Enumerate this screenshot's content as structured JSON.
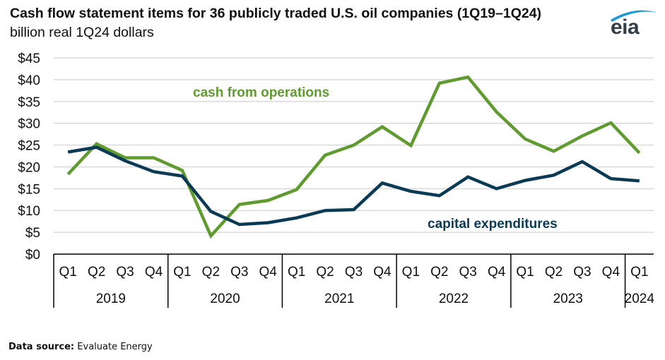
{
  "header": {
    "title": "Cash flow statement items for 36 publicly traded U.S. oil companies (1Q19–1Q24)",
    "subtitle": "billion real 1Q24 dollars",
    "logo_text": "eia",
    "logo_icon": "eia-swoosh-icon"
  },
  "footer": {
    "source_label": "Data source:",
    "source_value": "Evaluate Energy"
  },
  "colors": {
    "cash_from_operations": "#5f9b2f",
    "capital_expenditures": "#0b3a55",
    "gridline": "#d9d9d9",
    "axis": "#000000",
    "logo_swoosh": "#1a9ad6"
  },
  "chart_data": {
    "type": "line",
    "title": "Cash flow statement items for 36 publicly traded U.S. oil companies (1Q19–1Q24)",
    "subtitle": "billion real 1Q24 dollars",
    "xlabel": "",
    "ylabel": "",
    "ylim": [
      0,
      45
    ],
    "yticks": [
      0,
      5,
      10,
      15,
      20,
      25,
      30,
      35,
      40,
      45
    ],
    "ytick_labels": [
      "$0",
      "$5",
      "$10",
      "$15",
      "$20",
      "$25",
      "$30",
      "$35",
      "$40",
      "$45"
    ],
    "grid": true,
    "legend": "inline labels",
    "categories": [
      "Q1",
      "Q2",
      "Q3",
      "Q4",
      "Q1",
      "Q2",
      "Q3",
      "Q4",
      "Q1",
      "Q2",
      "Q3",
      "Q4",
      "Q1",
      "Q2",
      "Q3",
      "Q4",
      "Q1",
      "Q2",
      "Q3",
      "Q4",
      "Q1"
    ],
    "year_groups": [
      {
        "label": "2019",
        "count": 4
      },
      {
        "label": "2020",
        "count": 4
      },
      {
        "label": "2021",
        "count": 4
      },
      {
        "label": "2022",
        "count": 4
      },
      {
        "label": "2023",
        "count": 4
      },
      {
        "label": "2024",
        "count": 1
      }
    ],
    "series": [
      {
        "name": "cash from operations",
        "key": "cash_from_operations",
        "values": [
          18.3,
          25.3,
          22.1,
          22.1,
          19.2,
          4.2,
          11.4,
          12.3,
          14.8,
          22.7,
          25.0,
          29.2,
          24.9,
          39.2,
          40.6,
          32.6,
          26.4,
          23.6,
          27.1,
          30.1,
          23.2
        ]
      },
      {
        "name": "capital expenditures",
        "key": "capital_expenditures",
        "values": [
          23.4,
          24.5,
          21.4,
          18.9,
          17.9,
          9.8,
          6.8,
          7.2,
          8.3,
          10.0,
          10.2,
          16.3,
          14.4,
          13.4,
          17.7,
          15.0,
          16.9,
          18.1,
          21.2,
          17.3,
          16.8
        ]
      }
    ],
    "annotations": [
      {
        "text": "cash from operations",
        "series": "cash_from_operations"
      },
      {
        "text": "capital expenditures",
        "series": "capital_expenditures"
      }
    ]
  }
}
